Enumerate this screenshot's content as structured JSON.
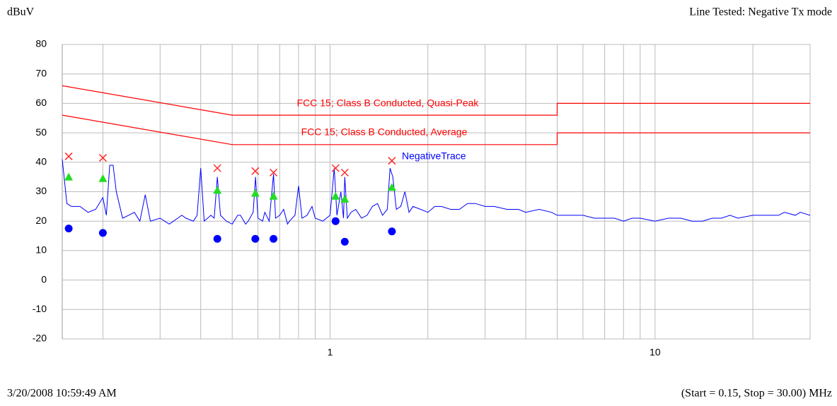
{
  "chart_data": {
    "type": "line",
    "y_label": "dBuV",
    "title": "Line Tested: Negative Tx mode",
    "footer_left": "3/20/2008 10:59:49 AM",
    "footer_right": "(Start = 0.15, Stop = 30.00) MHz",
    "xscale": "log",
    "xlim": [
      0.15,
      30
    ],
    "xticks": [
      1,
      10
    ],
    "x_minor_ticks": [
      0.2,
      0.3,
      0.4,
      0.5,
      0.6,
      0.7,
      0.8,
      0.9,
      2,
      3,
      4,
      5,
      6,
      7,
      8,
      9,
      20,
      30
    ],
    "ylim": [
      -20,
      80
    ],
    "yticks": [
      -20,
      -10,
      0,
      10,
      20,
      30,
      40,
      50,
      60,
      70,
      80
    ],
    "grid": true,
    "series": [
      {
        "name": "FCC 15; Class B Conducted, Quasi-Peak",
        "color": "#ff0000",
        "x": [
          0.15,
          0.5,
          5,
          5,
          30
        ],
        "values": [
          66,
          56,
          56,
          60,
          60
        ]
      },
      {
        "name": "FCC 15; Class B Conducted, Average",
        "color": "#ff0000",
        "x": [
          0.15,
          0.5,
          5,
          5,
          30
        ],
        "values": [
          56,
          46,
          46,
          50,
          50
        ]
      },
      {
        "name": "NegativeTrace",
        "color": "#0000ff",
        "x": [
          0.15,
          0.155,
          0.16,
          0.17,
          0.18,
          0.19,
          0.2,
          0.205,
          0.21,
          0.215,
          0.22,
          0.23,
          0.24,
          0.25,
          0.26,
          0.27,
          0.28,
          0.3,
          0.32,
          0.33,
          0.35,
          0.36,
          0.38,
          0.39,
          0.4,
          0.41,
          0.43,
          0.44,
          0.45,
          0.46,
          0.48,
          0.5,
          0.52,
          0.53,
          0.55,
          0.56,
          0.58,
          0.59,
          0.6,
          0.62,
          0.63,
          0.65,
          0.67,
          0.68,
          0.7,
          0.72,
          0.74,
          0.75,
          0.78,
          0.8,
          0.82,
          0.85,
          0.88,
          0.9,
          0.95,
          1.0,
          1.03,
          1.05,
          1.08,
          1.1,
          1.11,
          1.13,
          1.16,
          1.2,
          1.25,
          1.3,
          1.35,
          1.4,
          1.45,
          1.5,
          1.53,
          1.56,
          1.6,
          1.65,
          1.7,
          1.75,
          1.8,
          1.9,
          2.0,
          2.1,
          2.2,
          2.35,
          2.5,
          2.65,
          2.8,
          3.0,
          3.2,
          3.5,
          3.8,
          4.0,
          4.4,
          4.8,
          5.0,
          5.5,
          6.0,
          6.5,
          7.0,
          7.5,
          8.0,
          8.5,
          9.0,
          10,
          11,
          12,
          13,
          14,
          15,
          16,
          17,
          18,
          20,
          22,
          24,
          25,
          27,
          28,
          30
        ],
        "values": [
          41,
          26,
          25,
          25,
          23,
          24,
          28,
          22,
          39,
          39,
          30,
          21,
          22,
          23,
          20,
          29,
          20,
          21,
          19,
          20,
          22,
          21,
          20,
          22,
          38,
          20,
          22,
          21,
          35,
          22,
          20,
          19,
          22,
          22,
          19,
          20,
          23,
          35,
          21,
          20,
          23,
          20,
          36,
          21,
          22,
          24,
          19,
          20,
          22,
          32,
          21,
          22,
          25,
          21,
          20,
          22,
          38,
          22,
          30,
          21,
          35,
          21,
          23,
          24,
          21,
          22,
          25,
          26,
          22,
          24,
          38,
          35,
          24,
          25,
          30,
          23,
          25,
          24,
          23,
          25,
          25,
          24,
          24,
          26,
          26,
          25,
          25,
          24,
          24,
          23,
          24,
          23,
          22,
          22,
          22,
          21,
          21,
          21,
          20,
          21,
          21,
          20,
          21,
          21,
          20,
          20,
          21,
          21,
          22,
          21,
          22,
          22,
          22,
          23,
          22,
          23,
          22
        ]
      }
    ],
    "markers": [
      {
        "marker": "x",
        "color": "#ff2a2a",
        "x": [
          0.157,
          0.2,
          0.45,
          0.589,
          0.67,
          1.04,
          1.11,
          1.55
        ],
        "values": [
          42,
          41.5,
          38,
          37,
          36.5,
          38,
          36.5,
          40.5
        ]
      },
      {
        "marker": "triangle",
        "color": "#22dd22",
        "x": [
          0.157,
          0.2,
          0.45,
          0.589,
          0.67,
          1.04,
          1.11,
          1.55
        ],
        "values": [
          35,
          34.5,
          30.5,
          29.5,
          28.5,
          28.5,
          27.5,
          31.5
        ]
      },
      {
        "marker": "circle",
        "color": "#0000ff",
        "x": [
          0.157,
          0.2,
          0.45,
          0.589,
          0.67,
          1.04,
          1.11,
          1.55
        ],
        "values": [
          17.5,
          16,
          14,
          14,
          14,
          20,
          13,
          16.5
        ]
      }
    ]
  }
}
